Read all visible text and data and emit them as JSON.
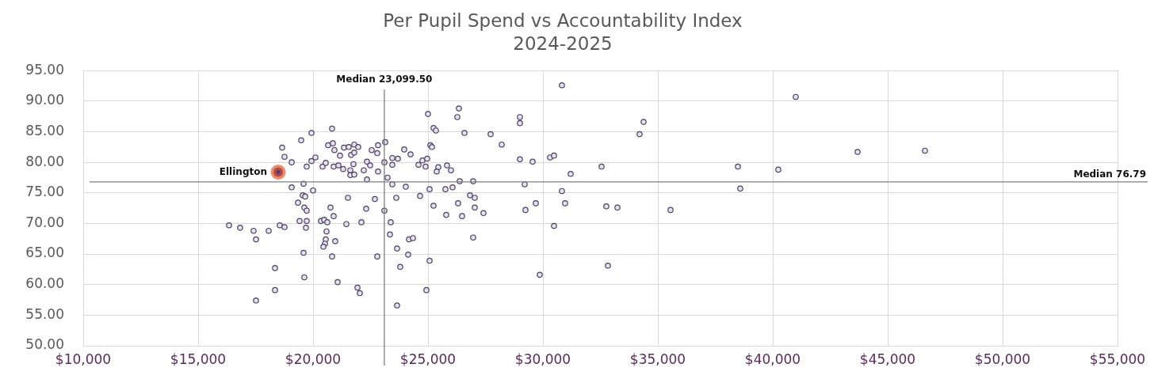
{
  "chart_data": {
    "type": "scatter",
    "title": "Per Pupil Spend vs Accountability Index",
    "subtitle": "2024-2025",
    "xlim": [
      10000,
      55000
    ],
    "ylim": [
      50,
      95
    ],
    "xticks": [
      {
        "value": 10000,
        "label": "$10,000"
      },
      {
        "value": 15000,
        "label": "$15,000"
      },
      {
        "value": 20000,
        "label": "$20,000"
      },
      {
        "value": 25000,
        "label": "$25,000"
      },
      {
        "value": 30000,
        "label": "$30,000"
      },
      {
        "value": 35000,
        "label": "$35,000"
      },
      {
        "value": 40000,
        "label": "$40,000"
      },
      {
        "value": 45000,
        "label": "$45,000"
      },
      {
        "value": 50000,
        "label": "$50,000"
      },
      {
        "value": 55000,
        "label": "$55,000"
      }
    ],
    "yticks": [
      {
        "value": 50,
        "label": "50.00"
      },
      {
        "value": 55,
        "label": "55.00"
      },
      {
        "value": 60,
        "label": "60.00"
      },
      {
        "value": 65,
        "label": "65.00"
      },
      {
        "value": 70,
        "label": "70.00"
      },
      {
        "value": 75,
        "label": "75.00"
      },
      {
        "value": 80,
        "label": "80.00"
      },
      {
        "value": 85,
        "label": "85.00"
      },
      {
        "value": 90,
        "label": "90.00"
      },
      {
        "value": 95,
        "label": "95.00"
      }
    ],
    "grid": true,
    "legend": false,
    "marker": "circle",
    "ref_lines": [
      {
        "axis": "x",
        "value": 23099.5,
        "label": "Median 23,099.50",
        "color": "#7f7f7f"
      },
      {
        "axis": "y",
        "value": 76.79,
        "label": "Median 76.79",
        "color": "#7f7f7f"
      }
    ],
    "series": [
      {
        "color": "#4a4060",
        "x": [
          16345,
          16827,
          17413,
          17517,
          17517,
          18069,
          18345,
          18345,
          18552,
          18758,
          18655,
          18758,
          19069,
          19483,
          19551,
          19620,
          19414,
          19724,
          19689,
          19586,
          19620,
          19586,
          19345,
          19655,
          19724,
          20000,
          19069,
          19931,
          20827,
          19724,
          19931,
          20103,
          20414,
          20552,
          20655,
          20862,
          20931,
          20896,
          21103,
          21310,
          21172,
          21345,
          21552,
          21793,
          21965,
          21655,
          21793,
          21620,
          21620,
          21793,
          21758,
          22207,
          22345,
          22483,
          22552,
          22793,
          22827,
          22827,
          22345,
          23138,
          23103,
          23241,
          23448,
          23448,
          23448,
          21517,
          22690,
          22310,
          23103,
          20758,
          20896,
          20345,
          20483,
          20620,
          21448,
          22103,
          20586,
          20552,
          20517,
          20448,
          20965,
          20827,
          22793,
          21069,
          21931,
          22034,
          23690,
          24034,
          23620,
          23965,
          24241,
          23379,
          23345,
          24172,
          24345,
          23655,
          24137,
          23793,
          23655,
          24655,
          24586,
          24758,
          24896,
          24965,
          25000,
          25241,
          25345,
          25103,
          25172,
          25069,
          25241,
          24931,
          25069,
          25448,
          25379,
          25827,
          26000,
          25758,
          26069,
          25793,
          26276,
          26345,
          26586,
          26379,
          26310,
          26483,
          26827,
          27034,
          26965,
          27034,
          27414,
          26965,
          27724,
          28207,
          29000,
          29000,
          29000,
          29552,
          29207,
          29241,
          29690,
          29862,
          30827,
          30310,
          30483,
          30827,
          30965,
          30483,
          31207,
          32552,
          32758,
          33241,
          32827,
          34207,
          34379,
          35552,
          38483,
          38586,
          40241,
          41000,
          43690,
          46620
        ],
        "values": [
          69.7,
          69.3,
          68.8,
          67.4,
          57.4,
          68.8,
          62.7,
          59.1,
          69.7,
          69.4,
          82.4,
          80.9,
          80.0,
          83.6,
          74.6,
          72.6,
          70.4,
          70.4,
          69.3,
          65.2,
          61.2,
          76.5,
          73.4,
          74.4,
          72.1,
          75.4,
          75.9,
          84.8,
          85.5,
          79.3,
          80.2,
          80.8,
          79.3,
          79.9,
          82.8,
          83.1,
          82.0,
          79.3,
          79.5,
          78.9,
          81.1,
          82.4,
          82.5,
          82.9,
          82.5,
          81.2,
          81.6,
          78.7,
          77.9,
          78.0,
          79.7,
          78.7,
          80.1,
          79.5,
          82.0,
          81.5,
          82.8,
          78.5,
          77.2,
          83.3,
          80.0,
          77.5,
          80.7,
          79.6,
          76.4,
          74.2,
          74.0,
          72.4,
          72.1,
          72.6,
          71.2,
          70.4,
          70.6,
          70.2,
          69.9,
          70.2,
          68.7,
          67.4,
          66.7,
          66.2,
          67.1,
          64.6,
          64.6,
          60.4,
          59.5,
          58.6,
          80.6,
          76.0,
          74.2,
          82.1,
          81.3,
          70.2,
          68.2,
          67.4,
          67.6,
          65.9,
          64.9,
          62.9,
          56.6,
          74.5,
          79.6,
          80.3,
          79.3,
          80.6,
          87.9,
          85.6,
          85.2,
          82.8,
          82.5,
          75.6,
          72.9,
          59.1,
          63.9,
          79.2,
          78.5,
          79.5,
          78.7,
          75.6,
          75.9,
          71.4,
          87.4,
          88.8,
          84.8,
          76.9,
          73.3,
          71.2,
          74.6,
          74.2,
          76.9,
          72.6,
          71.7,
          67.7,
          84.6,
          82.9,
          87.4,
          86.4,
          80.5,
          80.1,
          76.4,
          72.2,
          73.3,
          61.6,
          92.6,
          80.8,
          81.1,
          75.3,
          73.3,
          69.6,
          78.1,
          79.3,
          72.8,
          72.6,
          63.1,
          84.6,
          86.6,
          72.2,
          79.3,
          75.7,
          78.8,
          90.7,
          81.7,
          81.9
        ]
      },
      {
        "name": "Ellington",
        "color": "#e8541c",
        "x": [
          18483
        ],
        "values": [
          78.4
        ]
      }
    ]
  }
}
